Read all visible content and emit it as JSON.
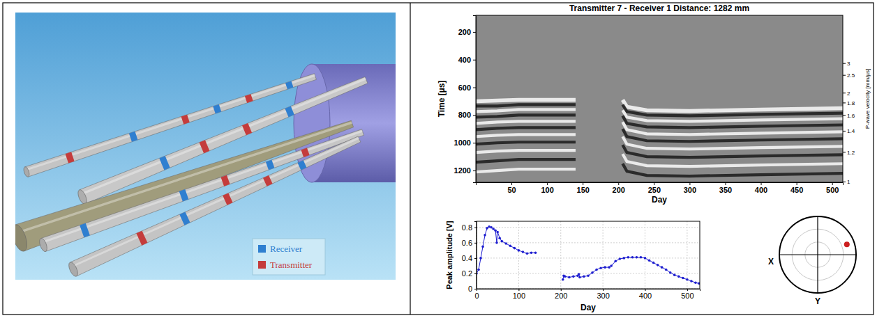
{
  "diagram": {
    "legend": [
      {
        "label": "Receiver",
        "color": "#2f7fd0"
      },
      {
        "label": "Transmitter",
        "color": "#c43c3c"
      }
    ]
  },
  "chart_data": [
    {
      "type": "traces",
      "title": "Transmitter 7 - Receiver 1 Distance: 1282 mm",
      "distance": 1282,
      "x_label": "Day",
      "y_label": "Time [µs]",
      "y2_label": "P-wave velocity [mm/µs]",
      "xlim": [
        0,
        515
      ],
      "xticks": [
        50,
        100,
        150,
        200,
        250,
        300,
        350,
        400,
        450,
        500
      ],
      "ylim": [
        1285,
        80
      ],
      "yticks": [
        200,
        400,
        600,
        800,
        1000,
        1200
      ],
      "y2ticks": [
        1,
        1.2,
        1.4,
        1.6,
        1.8,
        2,
        2.5,
        3
      ],
      "segments": [
        {
          "x": [
            0,
            30,
            60,
            100,
            140
          ],
          "stripes": [
            {
              "color": "#f4f4f4",
              "values": [
                700,
                695,
                690,
                690,
                690
              ]
            },
            {
              "color": "#202020",
              "values": [
                735,
                735,
                725,
                725,
                725
              ]
            },
            {
              "color": "#f4f4f4",
              "values": [
                775,
                770,
                760,
                760,
                760
              ]
            },
            {
              "color": "#202020",
              "values": [
                815,
                810,
                800,
                800,
                800
              ]
            },
            {
              "color": "#f4f4f4",
              "values": [
                860,
                850,
                845,
                845,
                845
              ]
            },
            {
              "color": "#202020",
              "values": [
                905,
                895,
                890,
                890,
                890
              ]
            },
            {
              "color": "#f4f4f4",
              "values": [
                955,
                945,
                940,
                940,
                940
              ]
            },
            {
              "color": "#202020",
              "values": [
                1010,
                1000,
                995,
                995,
                995
              ]
            },
            {
              "color": "#f4f4f4",
              "values": [
                1070,
                1060,
                1055,
                1055,
                1055
              ]
            },
            {
              "color": "#202020",
              "values": [
                1140,
                1130,
                1120,
                1120,
                1120
              ]
            },
            {
              "color": "#f4f4f4",
              "values": [
                1210,
                1200,
                1190,
                1190,
                1190
              ]
            }
          ]
        },
        {
          "x": [
            206,
            212,
            240,
            300,
            400,
            525
          ],
          "stripes": [
            {
              "color": "#f4f4f4",
              "values": [
                690,
                740,
                765,
                770,
                760,
                750
              ]
            },
            {
              "color": "#202020",
              "values": [
                725,
                775,
                800,
                805,
                795,
                785
              ]
            },
            {
              "color": "#f4f4f4",
              "values": [
                765,
                815,
                840,
                845,
                835,
                825
              ]
            },
            {
              "color": "#202020",
              "values": [
                805,
                860,
                885,
                890,
                880,
                870
              ]
            },
            {
              "color": "#f4f4f4",
              "values": [
                850,
                905,
                935,
                940,
                930,
                920
              ]
            },
            {
              "color": "#202020",
              "values": [
                900,
                955,
                985,
                990,
                980,
                970
              ]
            },
            {
              "color": "#f4f4f4",
              "values": [
                955,
                1010,
                1040,
                1045,
                1035,
                1025
              ]
            },
            {
              "color": "#202020",
              "values": [
                1015,
                1070,
                1100,
                1105,
                1095,
                1085
              ]
            },
            {
              "color": "#f4f4f4",
              "values": [
                1080,
                1135,
                1165,
                1170,
                1160,
                1150
              ]
            },
            {
              "color": "#202020",
              "values": [
                1150,
                1205,
                1235,
                1240,
                1230,
                1220
              ]
            }
          ]
        }
      ]
    },
    {
      "type": "line",
      "x_label": "Day",
      "y_label": "Peak amplitude [V]",
      "grid": true,
      "xlim": [
        0,
        530
      ],
      "xticks": [
        0,
        100,
        200,
        300,
        400,
        500
      ],
      "ylim": [
        0,
        0.88
      ],
      "yticks": [
        0,
        0.2,
        0.4,
        0.6,
        0.8
      ],
      "x": [
        0,
        5,
        10,
        15,
        20,
        25,
        30,
        35,
        40,
        45,
        48,
        50,
        55,
        60,
        70,
        80,
        90,
        100,
        110,
        120,
        130,
        140,
        170,
        205,
        207,
        210,
        220,
        230,
        240,
        243,
        245,
        255,
        265,
        275,
        285,
        295,
        305,
        315,
        320,
        330,
        340,
        350,
        360,
        370,
        380,
        390,
        400,
        410,
        420,
        430,
        440,
        450,
        460,
        470,
        480,
        490,
        500,
        510,
        520,
        528
      ],
      "series": [
        {
          "color": "#1f1fd0",
          "marker": "circle",
          "values": [
            0.2,
            0.25,
            0.4,
            0.55,
            0.7,
            0.79,
            0.81,
            0.8,
            0.78,
            0.76,
            0.6,
            0.74,
            0.66,
            0.62,
            0.59,
            0.56,
            0.53,
            0.5,
            0.48,
            0.46,
            0.47,
            0.47,
            null,
            0.12,
            0.17,
            0.16,
            0.15,
            0.16,
            0.17,
            0.19,
            0.15,
            0.16,
            0.17,
            0.21,
            0.25,
            0.27,
            0.28,
            0.28,
            0.3,
            0.36,
            0.39,
            0.4,
            0.41,
            0.41,
            0.41,
            0.41,
            0.4,
            0.37,
            0.34,
            0.31,
            0.28,
            0.25,
            0.21,
            0.18,
            0.16,
            0.14,
            0.12,
            0.1,
            0.08,
            0.07
          ]
        }
      ]
    },
    {
      "type": "polar_scatter",
      "x_label": "X",
      "y_label": "Y",
      "tick_labels": false,
      "rlim": [
        0,
        1
      ],
      "rticks": [
        0.33,
        0.67,
        1
      ],
      "x": [
        0.76
      ],
      "y": [
        0.27
      ],
      "color": "#cc1f1f",
      "marker": "circle"
    }
  ]
}
